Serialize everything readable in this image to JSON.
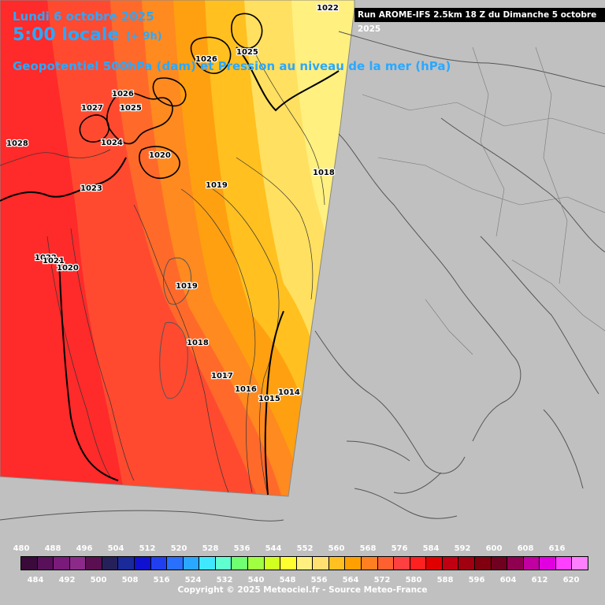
{
  "header": {
    "date": "Lundi 6 octobre 2025",
    "time": "5:00 locale",
    "lead": "(+ 9h)",
    "layer": "Geopotentiel 500hPa (dam) et Pression au niveau de la mer (hPa)",
    "run": "Run AROME-IFS 2.5km 18 Z du Dimanche 5 octobre 2025"
  },
  "legend": {
    "top_ticks": [
      "480",
      "488",
      "496",
      "504",
      "512",
      "520",
      "528",
      "536",
      "544",
      "552",
      "560",
      "568",
      "576",
      "584",
      "592",
      "600",
      "608",
      "616"
    ],
    "bottom_ticks": [
      "484",
      "492",
      "500",
      "508",
      "516",
      "524",
      "532",
      "540",
      "548",
      "556",
      "564",
      "572",
      "580",
      "588",
      "596",
      "604",
      "612",
      "620"
    ],
    "colors": [
      "#3a0a3a",
      "#58105a",
      "#7a1a7a",
      "#8c2a8a",
      "#5a1050",
      "#26205a",
      "#1a2a9a",
      "#1010d0",
      "#2040f0",
      "#2a70ff",
      "#2aa8ff",
      "#40e8ff",
      "#60ffd0",
      "#70ff70",
      "#a0ff40",
      "#d0ff20",
      "#ffff30",
      "#fff080",
      "#ffe070",
      "#ffc020",
      "#ffa000",
      "#ff8020",
      "#ff6030",
      "#ff4040",
      "#ff2020",
      "#e00000",
      "#c00010",
      "#a00010",
      "#800010",
      "#700020",
      "#900050",
      "#c000a0",
      "#e000e0",
      "#ff40ff",
      "#ff80ff"
    ]
  },
  "isobars": [
    "1022",
    "1026",
    "1025",
    "1026",
    "1027",
    "1025",
    "1028",
    "1024",
    "1020",
    "1019",
    "1018",
    "1023",
    "1022",
    "1021",
    "1020",
    "1019",
    "1018",
    "1017",
    "1016",
    "1015",
    "1014"
  ],
  "copyright": "Copyright © 2025 Meteociel.fr - Source Meteo-France"
}
